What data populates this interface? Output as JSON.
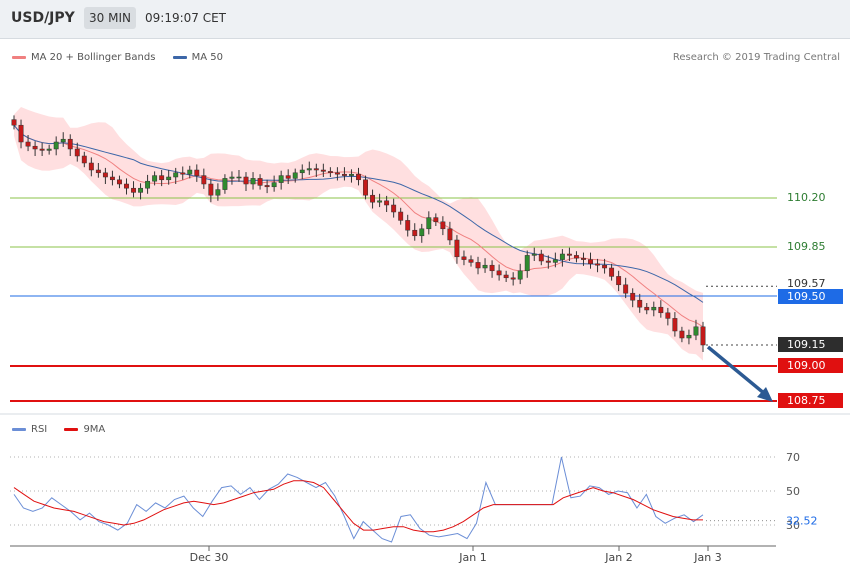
{
  "header": {
    "symbol": "USD/JPY",
    "timeframe": "30 MIN",
    "time": "09:19:07 CET"
  },
  "legend_main": {
    "ma20": "MA 20 + Bollinger Bands",
    "ma50": "MA 50",
    "ma20_color": "#f08080",
    "ma50_color": "#3d67a8"
  },
  "copyright": "Research © 2019 Trading Central",
  "legend_rsi": {
    "rsi": "RSI",
    "ma9": "9MA",
    "rsi_color": "#6b8ed6",
    "ma9_color": "#e01010"
  },
  "x_labels": [
    "Dec 30",
    "Jan 1",
    "Jan 2",
    "Jan 3"
  ],
  "price_levels": [
    {
      "value": "110.20",
      "color": "#8bc34a",
      "style": "green-line"
    },
    {
      "value": "109.85",
      "color": "#8bc34a",
      "style": "green-line"
    },
    {
      "value": "109.57",
      "color": "#333333",
      "style": "dotted-plain"
    },
    {
      "value": "109.50",
      "color": "#1e6be6",
      "style": "blue-box"
    },
    {
      "value": "109.15",
      "color": "#2d2d2d",
      "style": "dark-box"
    },
    {
      "value": "109.00",
      "color": "#e01010",
      "style": "red-box"
    },
    {
      "value": "108.75",
      "color": "#e01010",
      "style": "red-box"
    }
  ],
  "rsi_levels": [
    "70",
    "50",
    "30"
  ],
  "rsi_current": "32.52",
  "chart_data": [
    {
      "type": "candlestick",
      "title": "USD/JPY",
      "timeframe": "30 MIN",
      "ylim": [
        108.7,
        110.9
      ],
      "x_ticks": [
        "Dec 30",
        "Jan 1",
        "Jan 2",
        "Jan 3"
      ],
      "series": [
        {
          "name": "MA 20 + Bollinger Bands"
        },
        {
          "name": "MA 50"
        }
      ],
      "close_series": [
        110.72,
        110.6,
        110.57,
        110.55,
        110.54,
        110.55,
        110.6,
        110.62,
        110.55,
        110.5,
        110.45,
        110.4,
        110.38,
        110.35,
        110.33,
        110.3,
        110.27,
        110.24,
        110.27,
        110.32,
        110.36,
        110.33,
        110.35,
        110.38,
        110.37,
        110.4,
        110.36,
        110.3,
        110.22,
        110.26,
        110.34,
        110.35,
        110.35,
        110.3,
        110.34,
        110.29,
        110.28,
        110.31,
        110.36,
        110.34,
        110.38,
        110.4,
        110.41,
        110.4,
        110.39,
        110.38,
        110.37,
        110.36,
        110.37,
        110.33,
        110.22,
        110.17,
        110.18,
        110.15,
        110.1,
        110.04,
        109.97,
        109.93,
        109.98,
        110.06,
        110.03,
        109.98,
        109.9,
        109.78,
        109.76,
        109.74,
        109.7,
        109.72,
        109.68,
        109.65,
        109.63,
        109.62,
        109.68,
        109.79,
        109.8,
        109.75,
        109.74,
        109.76,
        109.8,
        109.79,
        109.77,
        109.76,
        109.73,
        109.72,
        109.7,
        109.64,
        109.58,
        109.52,
        109.47,
        109.42,
        109.4,
        109.42,
        109.38,
        109.34,
        109.25,
        109.2,
        109.22,
        109.28,
        109.15
      ],
      "rsi": {
        "levels": [
          70,
          50,
          30
        ],
        "current": 32.52,
        "rsi_values": [
          48,
          40,
          38,
          40,
          46,
          42,
          38,
          33,
          37,
          32,
          30,
          27,
          31,
          42,
          38,
          43,
          40,
          45,
          47,
          40,
          35,
          44,
          52,
          53,
          48,
          52,
          45,
          51,
          54,
          60,
          58,
          55,
          52,
          55,
          47,
          35,
          22,
          32,
          27,
          22,
          20,
          35,
          36,
          28,
          24,
          23,
          24,
          25,
          22,
          31,
          55,
          42,
          42,
          42,
          42,
          42,
          42,
          42,
          70,
          46,
          47,
          53,
          52,
          48,
          50,
          49,
          40,
          48,
          35,
          31,
          34,
          36,
          32,
          36
        ],
        "ma9_values": [
          52,
          48,
          44,
          42,
          40,
          39,
          38,
          36,
          34,
          32,
          31,
          30,
          31,
          33,
          36,
          39,
          41,
          43,
          44,
          43,
          42,
          43,
          45,
          47,
          49,
          50,
          51,
          54,
          56,
          56,
          55,
          52,
          45,
          38,
          31,
          27,
          27,
          28,
          29,
          29,
          27,
          26,
          26,
          27,
          29,
          32,
          36,
          40,
          42,
          42,
          42,
          42,
          42,
          42,
          42,
          46,
          48,
          50,
          52,
          50,
          49,
          47,
          45,
          42,
          39,
          37,
          35,
          34,
          33,
          33
        ]
      }
    }
  ]
}
